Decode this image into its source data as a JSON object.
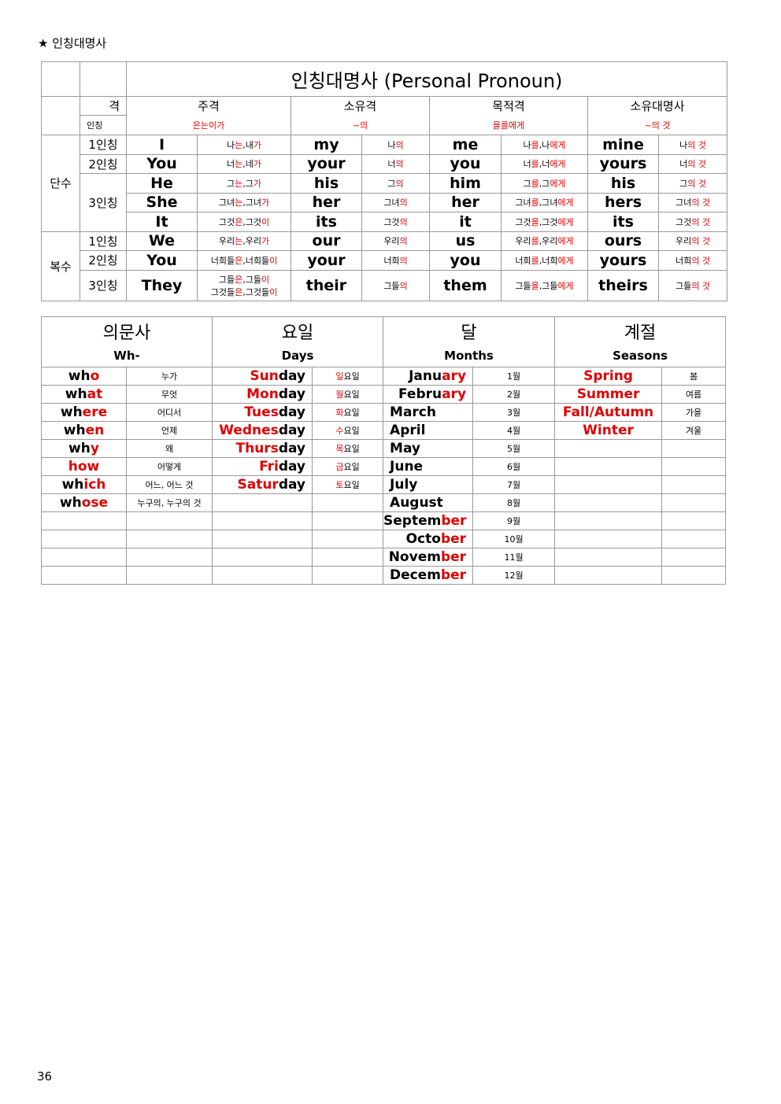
{
  "heading": "★ 인칭대명사",
  "page_number": "36",
  "pronoun_table": {
    "title": "인칭대명사 (Personal Pronoun)",
    "corner_top": "격",
    "corner_bottom": "인칭",
    "cases": [
      {
        "name": "주격",
        "hint": "은는이가"
      },
      {
        "name": "소유격",
        "hint": "~의"
      },
      {
        "name": "목적격",
        "hint": "을를에게"
      },
      {
        "name": "소유대명사",
        "hint": "~의 것"
      }
    ],
    "groups": [
      {
        "label": "단수",
        "persons": [
          {
            "label": "1인칭",
            "rows": [
              {
                "subj": "I",
                "subj_kr": "나는,내가",
                "poss": "my",
                "poss_kr": "나의",
                "obj": "me",
                "obj_kr": "나를,나에게",
                "pron": "mine",
                "pron_kr": "나의 것"
              }
            ]
          },
          {
            "label": "2인칭",
            "rows": [
              {
                "subj": "You",
                "subj_kr": "너는,네가",
                "poss": "your",
                "poss_kr": "너의",
                "obj": "you",
                "obj_kr": "너를,너에게",
                "pron": "yours",
                "pron_kr": "너의 것"
              }
            ]
          },
          {
            "label": "3인칭",
            "rows": [
              {
                "subj": "He",
                "subj_kr": "그는,그가",
                "poss": "his",
                "poss_kr": "그의",
                "obj": "him",
                "obj_kr": "그를,그에게",
                "pron": "his",
                "pron_kr": "그의 것"
              },
              {
                "subj": "She",
                "subj_kr": "그녀는,그녀가",
                "poss": "her",
                "poss_kr": "그녀의",
                "obj": "her",
                "obj_kr": "그녀를,그녀에게",
                "pron": "hers",
                "pron_kr": "그녀의 것"
              },
              {
                "subj": "It",
                "subj_kr": "그것은,그것이",
                "poss": "its",
                "poss_kr": "그것의",
                "obj": "it",
                "obj_kr": "그것을,그것에게",
                "pron": "its",
                "pron_kr": "그것의 것"
              }
            ]
          }
        ]
      },
      {
        "label": "복수",
        "persons": [
          {
            "label": "1인칭",
            "rows": [
              {
                "subj": "We",
                "subj_kr": "우리는,우리가",
                "poss": "our",
                "poss_kr": "우리의",
                "obj": "us",
                "obj_kr": "우리를,우리에게",
                "pron": "ours",
                "pron_kr": "우리의 것"
              }
            ]
          },
          {
            "label": "2인칭",
            "rows": [
              {
                "subj": "You",
                "subj_kr": "너희들은,너희들이",
                "poss": "your",
                "poss_kr": "너희의",
                "obj": "you",
                "obj_kr": "너희를,너희에게",
                "pron": "yours",
                "pron_kr": "너희의 것"
              }
            ]
          },
          {
            "label": "3인칭",
            "rows": [
              {
                "subj": "They",
                "subj_kr": "그들은,그들이",
                "subj_kr2": "그것들은,그것들이",
                "poss": "their",
                "poss_kr": "그들의",
                "obj": "them",
                "obj_kr": "그들을,그들에게",
                "pron": "theirs",
                "pron_kr": "그들의 것"
              }
            ]
          }
        ]
      }
    ]
  },
  "vocab_table": {
    "categories": [
      {
        "title": "의문사",
        "subtitle": "Wh-"
      },
      {
        "title": "요일",
        "subtitle": "Days"
      },
      {
        "title": "달",
        "subtitle": "Months"
      },
      {
        "title": "계절",
        "subtitle": "Seasons"
      }
    ],
    "wh": [
      {
        "word": "who",
        "kr": "누가"
      },
      {
        "word": "what",
        "kr": "무엇"
      },
      {
        "word": "where",
        "kr": "어디서"
      },
      {
        "word": "when",
        "kr": "언제"
      },
      {
        "word": "why",
        "kr": "왜"
      },
      {
        "word": "how",
        "kr": "어떻게"
      },
      {
        "word": "which",
        "kr": "어느, 어느 것"
      },
      {
        "word": "whose",
        "kr": "누구의, 누구의 것"
      }
    ],
    "days": [
      {
        "word": "Sunday",
        "kr": "일요일"
      },
      {
        "word": "Monday",
        "kr": "월요일"
      },
      {
        "word": "Tuesday",
        "kr": "화요일"
      },
      {
        "word": "Wednesday",
        "kr": "수요일"
      },
      {
        "word": "Thursday",
        "kr": "목요일"
      },
      {
        "word": "Friday",
        "kr": "금요일"
      },
      {
        "word": "Saturday",
        "kr": "토요일"
      }
    ],
    "months": [
      {
        "word": "January",
        "kr": "1월"
      },
      {
        "word": "February",
        "kr": "2월"
      },
      {
        "word": "March",
        "kr": "3월"
      },
      {
        "word": "April",
        "kr": "4월"
      },
      {
        "word": "May",
        "kr": "5월"
      },
      {
        "word": "June",
        "kr": "6월"
      },
      {
        "word": "July",
        "kr": "7월"
      },
      {
        "word": "August",
        "kr": "8월"
      },
      {
        "word": "September",
        "kr": "9월"
      },
      {
        "word": "October",
        "kr": "10월"
      },
      {
        "word": "November",
        "kr": "11월"
      },
      {
        "word": "December",
        "kr": "12월"
      }
    ],
    "seasons": [
      {
        "word": "Spring",
        "kr": "봄"
      },
      {
        "word": "Summer",
        "kr": "여름"
      },
      {
        "word": "Fall/Autumn",
        "kr": "가을"
      },
      {
        "word": "Winter",
        "kr": "겨울"
      }
    ]
  }
}
